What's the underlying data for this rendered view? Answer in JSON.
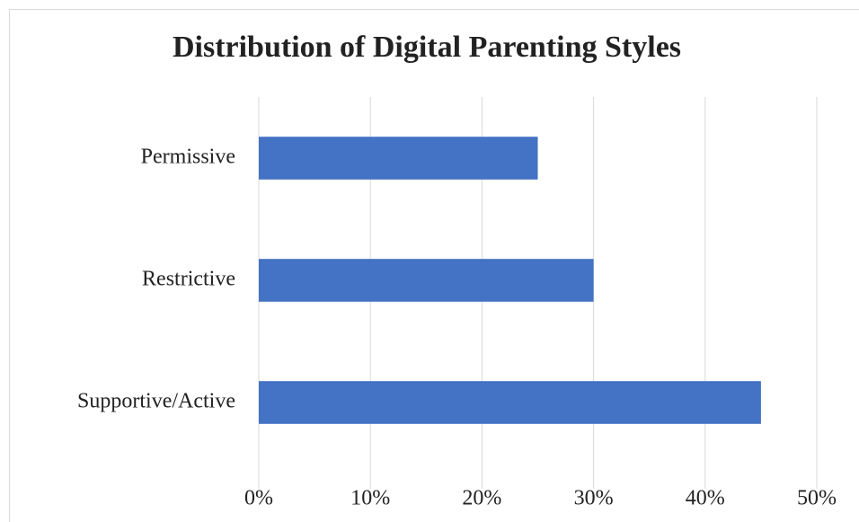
{
  "chart_data": {
    "type": "bar",
    "orientation": "horizontal",
    "title": "Distribution of Digital Parenting Styles",
    "categories": [
      "Permissive",
      "Restrictive",
      "Supportive/Active"
    ],
    "values": [
      25,
      30,
      45
    ],
    "color": "#4472c4",
    "xlim": [
      0,
      50
    ],
    "xticks": [
      {
        "value": 0,
        "label": "0%"
      },
      {
        "value": 10,
        "label": "10%"
      },
      {
        "value": 20,
        "label": "20%"
      },
      {
        "value": 30,
        "label": "30%"
      },
      {
        "value": 40,
        "label": "40%"
      },
      {
        "value": 50,
        "label": "50%"
      }
    ],
    "grid": true
  }
}
